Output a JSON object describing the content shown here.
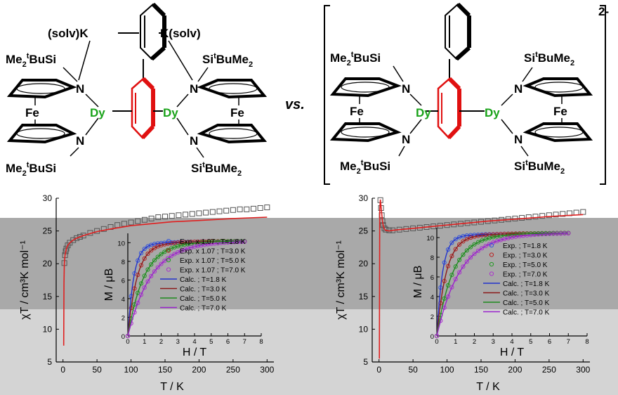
{
  "structures": {
    "left": {
      "k_left": "(solv)K",
      "k_right": "K(solv)",
      "silyl_tl": "Me",
      "silyl_tl_sub": "2",
      "silyl_tl_sup": "t",
      "silyl_tl_tail": "BuSi",
      "silyl_bl": "Me",
      "silyl_bl_sub": "2",
      "silyl_bl_sup": "t",
      "silyl_bl_tail": "BuSi",
      "silyl_tr_head": "Si",
      "silyl_tr_sup": "t",
      "silyl_tr": "BuMe",
      "silyl_tr_sub": "2",
      "silyl_br_head": "Si",
      "silyl_br_sup": "t",
      "silyl_br": "BuMe",
      "silyl_br_sub": "2",
      "fe": "Fe",
      "n": "N",
      "dy": "Dy"
    },
    "vs": "vs.",
    "right": {
      "charge": "2-",
      "silyl_tl": "Me",
      "silyl_tl_sub": "2",
      "silyl_tl_sup": "t",
      "silyl_tl_tail": "BuSi",
      "silyl_bl": "Me",
      "silyl_bl_sub": "2",
      "silyl_bl_sup": "t",
      "silyl_bl_tail": "BuSi",
      "silyl_tr_head": "Si",
      "silyl_tr_sup": "t",
      "silyl_tr": "BuMe",
      "silyl_tr_sub": "2",
      "silyl_br_head": "Si",
      "silyl_br_sup": "t",
      "silyl_br": "BuMe",
      "silyl_br_sub": "2",
      "fe": "Fe",
      "n": "N",
      "dy": "Dy"
    }
  },
  "chart_data": [
    {
      "type": "scatter",
      "panel": "left-main",
      "xlabel": "T / K",
      "ylabel": "χT / cm³K mol⁻¹",
      "xlim": [
        -10,
        310
      ],
      "ylim": [
        5,
        30
      ],
      "xticks": [
        0,
        50,
        100,
        150,
        200,
        250,
        300
      ],
      "yticks": [
        5,
        10,
        15,
        20,
        25,
        30
      ],
      "series": [
        {
          "kind": "exp",
          "marker": "square",
          "color": "#555555",
          "x": [
            2,
            3,
            4,
            5,
            7,
            10,
            15,
            20,
            25,
            30,
            40,
            50,
            60,
            70,
            80,
            90,
            100,
            110,
            120,
            130,
            140,
            150,
            160,
            170,
            180,
            190,
            200,
            210,
            220,
            230,
            240,
            250,
            260,
            270,
            280,
            290,
            300
          ],
          "y": [
            20.1,
            21.3,
            21.9,
            22.3,
            22.8,
            23.2,
            23.6,
            23.9,
            24.1,
            24.3,
            24.7,
            25.0,
            25.3,
            25.6,
            25.9,
            26.1,
            26.3,
            26.5,
            26.7,
            26.9,
            27.1,
            27.2,
            27.3,
            27.4,
            27.5,
            27.6,
            27.7,
            27.8,
            27.9,
            28.0,
            28.1,
            28.2,
            28.3,
            28.3,
            28.4,
            28.5,
            28.6
          ]
        },
        {
          "kind": "calc",
          "color": "#e02020",
          "x": [
            1,
            1.5,
            2,
            3,
            5,
            7,
            10,
            15,
            20,
            30,
            40,
            50,
            70,
            100,
            130,
            160,
            200,
            250,
            300
          ],
          "y": [
            7.5,
            17.0,
            20.0,
            21.3,
            22.3,
            22.8,
            23.2,
            23.6,
            23.9,
            24.3,
            24.6,
            24.9,
            25.3,
            25.8,
            26.1,
            26.4,
            26.6,
            26.9,
            27.1
          ]
        }
      ]
    },
    {
      "type": "scatter",
      "panel": "left-inset",
      "xlabel": "H / T",
      "ylabel": "M / μB",
      "xlim": [
        0,
        8
      ],
      "ylim": [
        0,
        11
      ],
      "xticks": [
        0,
        1,
        2,
        3,
        4,
        5,
        6,
        7,
        8
      ],
      "yticks": [
        0,
        2,
        4,
        6,
        8,
        10
      ],
      "legend": "top-right",
      "series": [
        {
          "name": "Exp. x 1.07 ; T=1.8 K",
          "kind": "exp",
          "color": "#3355dd",
          "T": 1.8,
          "Ms": 10.2,
          "h0": 0.35
        },
        {
          "name": "Exp. x 1.07 ; T=3.0 K",
          "kind": "exp",
          "color": "#bb2222",
          "T": 3.0,
          "Ms": 10.2,
          "h0": 0.55
        },
        {
          "name": "Exp. x 1.07 ; T=5.0 K",
          "kind": "exp",
          "color": "#229922",
          "T": 5.0,
          "Ms": 10.2,
          "h0": 0.95
        },
        {
          "name": "Exp. x 1.07 ; T=7.0 K",
          "kind": "exp",
          "color": "#aa33cc",
          "T": 7.0,
          "Ms": 10.2,
          "h0": 1.35
        },
        {
          "name": "Calc. ; T=1.8 K",
          "kind": "calc",
          "color": "#2233cc",
          "T": 1.8,
          "Ms": 10.2,
          "h0": 0.35
        },
        {
          "name": "Calc. ; T=3.0 K",
          "kind": "calc",
          "color": "#8b1a1a",
          "T": 3.0,
          "Ms": 10.2,
          "h0": 0.55
        },
        {
          "name": "Calc. ; T=5.0 K",
          "kind": "calc",
          "color": "#1e8a1e",
          "T": 5.0,
          "Ms": 10.2,
          "h0": 0.95
        },
        {
          "name": "Calc. ; T=7.0 K",
          "kind": "calc",
          "color": "#9922cc",
          "T": 7.0,
          "Ms": 10.2,
          "h0": 1.35
        }
      ]
    },
    {
      "type": "scatter",
      "panel": "right-main",
      "xlabel": "T / K",
      "ylabel": "χT / cm³K mol⁻¹",
      "xlim": [
        -10,
        310
      ],
      "ylim": [
        5,
        30
      ],
      "xticks": [
        0,
        50,
        100,
        150,
        200,
        250,
        300
      ],
      "yticks": [
        5,
        10,
        15,
        20,
        25,
        30
      ],
      "series": [
        {
          "kind": "exp",
          "marker": "square",
          "color": "#555555",
          "x": [
            2,
            3,
            4,
            5,
            6,
            8,
            10,
            15,
            20,
            30,
            40,
            50,
            60,
            70,
            80,
            90,
            100,
            110,
            120,
            130,
            140,
            150,
            160,
            170,
            180,
            190,
            200,
            210,
            220,
            230,
            240,
            250,
            260,
            270,
            280,
            290,
            300
          ],
          "y": [
            29.7,
            28.5,
            27.4,
            26.5,
            25.9,
            25.4,
            25.2,
            25.1,
            25.1,
            25.2,
            25.3,
            25.4,
            25.5,
            25.6,
            25.7,
            25.8,
            25.9,
            26.0,
            26.1,
            26.2,
            26.3,
            26.4,
            26.5,
            26.6,
            26.7,
            26.8,
            26.9,
            27.0,
            27.1,
            27.2,
            27.3,
            27.4,
            27.5,
            27.6,
            27.7,
            27.8,
            27.9
          ]
        },
        {
          "kind": "calc",
          "color": "#e02020",
          "x": [
            0.5,
            1,
            2,
            3,
            4,
            5,
            6,
            8,
            10,
            15,
            20,
            30,
            50,
            80,
            120,
            160,
            200,
            250,
            300
          ],
          "y": [
            5.5,
            28.0,
            29.8,
            28.7,
            27.6,
            26.6,
            25.9,
            25.3,
            25.1,
            25.0,
            25.1,
            25.2,
            25.4,
            25.7,
            26.1,
            26.5,
            26.8,
            27.2,
            27.5
          ]
        }
      ]
    },
    {
      "type": "scatter",
      "panel": "right-inset",
      "xlabel": "H / T",
      "ylabel": "M / μB",
      "xlim": [
        0,
        8
      ],
      "ylim": [
        0,
        11
      ],
      "xticks": [
        0,
        1,
        2,
        3,
        4,
        5,
        6,
        7,
        8
      ],
      "yticks": [
        0,
        2,
        4,
        6,
        8,
        10
      ],
      "legend": "top-right",
      "series": [
        {
          "name": "Exp. ; T=1.8 K",
          "kind": "exp",
          "color": "#3355dd",
          "T": 1.8,
          "Ms": 10.5,
          "h0": 0.3
        },
        {
          "name": "Exp. ; T=3.0 K",
          "kind": "exp",
          "color": "#bb2222",
          "T": 3.0,
          "Ms": 10.5,
          "h0": 0.5
        },
        {
          "name": "Exp. ; T=5.0 K",
          "kind": "exp",
          "color": "#229922",
          "T": 5.0,
          "Ms": 10.5,
          "h0": 0.85
        },
        {
          "name": "Exp. ; T=7.0 K",
          "kind": "exp",
          "color": "#aa33cc",
          "T": 7.0,
          "Ms": 10.5,
          "h0": 1.2
        },
        {
          "name": "Calc. ; T=1.8 K",
          "kind": "calc",
          "color": "#2233cc",
          "T": 1.8,
          "Ms": 10.5,
          "h0": 0.3
        },
        {
          "name": "Calc. ; T=3.0 K",
          "kind": "calc",
          "color": "#8b1a1a",
          "T": 3.0,
          "Ms": 10.5,
          "h0": 0.5
        },
        {
          "name": "Calc. ; T=5.0 K",
          "kind": "calc",
          "color": "#1e8a1e",
          "T": 5.0,
          "Ms": 10.5,
          "h0": 0.85
        },
        {
          "name": "Calc. ; T=7.0 K",
          "kind": "calc",
          "color": "#9922cc",
          "T": 7.0,
          "Ms": 10.5,
          "h0": 1.2
        }
      ]
    }
  ]
}
